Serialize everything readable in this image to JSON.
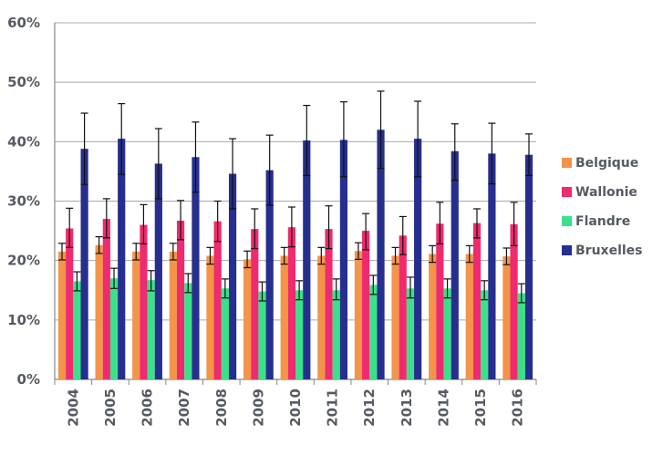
{
  "chart_data": {
    "type": "bar",
    "categories": [
      "2004",
      "2005",
      "2006",
      "2007",
      "2008",
      "2009",
      "2010",
      "2011",
      "2012",
      "2013",
      "2014",
      "2015",
      "2016"
    ],
    "ylim": [
      0,
      60
    ],
    "yticks": [
      "0%",
      "10%",
      "20%",
      "30%",
      "40%",
      "50%",
      "60%"
    ],
    "grid": "horizontal",
    "legend_position": "right",
    "error_bars": true,
    "series": [
      {
        "name": "Belgique",
        "color": "#f39449",
        "values": [
          21.5,
          22.6,
          21.5,
          21.5,
          20.8,
          20.2,
          20.8,
          20.8,
          21.6,
          20.8,
          21.1,
          21.1,
          20.7
        ],
        "err_low": [
          20.1,
          21.2,
          20.1,
          20.1,
          19.4,
          18.8,
          19.4,
          19.4,
          20.2,
          19.4,
          19.7,
          19.7,
          19.3
        ],
        "err_high": [
          22.9,
          24.0,
          22.9,
          22.9,
          22.2,
          21.6,
          22.2,
          22.2,
          23.0,
          22.2,
          22.5,
          22.5,
          22.1
        ]
      },
      {
        "name": "Wallonie",
        "color": "#ef2a6e",
        "values": [
          25.4,
          27.0,
          26.0,
          26.7,
          26.6,
          25.3,
          25.6,
          25.3,
          25.0,
          24.2,
          26.2,
          26.3,
          26.1
        ],
        "err_low": [
          22.2,
          23.8,
          22.8,
          23.5,
          23.2,
          22.0,
          22.3,
          22.0,
          21.8,
          21.0,
          22.8,
          23.8,
          22.5
        ],
        "err_high": [
          28.8,
          30.4,
          29.4,
          30.1,
          30.0,
          28.7,
          29.0,
          29.2,
          27.9,
          27.4,
          29.8,
          28.7,
          29.8
        ]
      },
      {
        "name": "Flandre",
        "color": "#3de08a",
        "values": [
          16.5,
          17.0,
          16.7,
          16.2,
          15.3,
          14.8,
          15.0,
          15.0,
          15.9,
          15.3,
          15.3,
          15.0,
          14.5
        ],
        "err_low": [
          14.9,
          15.3,
          14.9,
          14.6,
          13.7,
          13.2,
          13.4,
          13.4,
          14.3,
          13.7,
          13.7,
          13.4,
          12.9
        ],
        "err_high": [
          18.1,
          18.7,
          18.3,
          17.8,
          16.9,
          16.4,
          16.6,
          16.9,
          17.5,
          17.2,
          16.9,
          16.6,
          16.1
        ]
      },
      {
        "name": "Bruxelles",
        "color": "#262e8e",
        "values": [
          38.8,
          40.5,
          36.3,
          37.4,
          34.6,
          35.2,
          40.2,
          40.3,
          42.0,
          40.5,
          38.4,
          38.0,
          37.8
        ],
        "err_low": [
          32.8,
          34.5,
          30.4,
          31.5,
          28.7,
          29.3,
          34.3,
          34.1,
          35.5,
          34.1,
          33.5,
          32.9,
          34.3
        ],
        "err_high": [
          44.8,
          46.4,
          42.2,
          43.3,
          40.5,
          41.1,
          46.1,
          46.7,
          48.5,
          46.8,
          43.0,
          43.1,
          41.3
        ]
      }
    ]
  }
}
